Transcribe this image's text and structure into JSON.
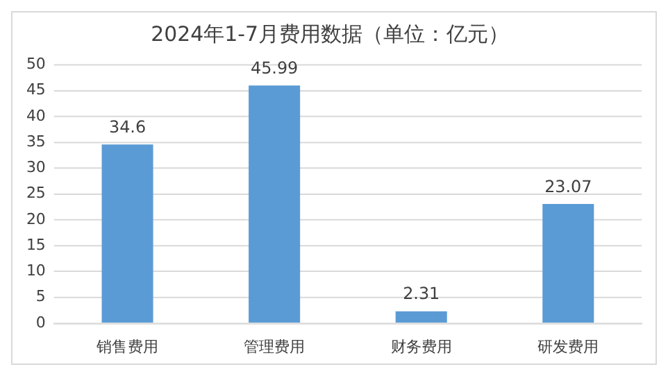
{
  "chart_data": {
    "type": "bar",
    "title": "2024年1-7月费用数据（单位：亿元）",
    "categories": [
      "销售费用",
      "管理费用",
      "财务费用",
      "研发费用"
    ],
    "values": [
      34.6,
      45.99,
      2.31,
      23.07
    ],
    "color": "#5b9bd5",
    "ylim": [
      0,
      50
    ],
    "yticks": [
      0,
      5,
      10,
      15,
      20,
      25,
      30,
      35,
      40,
      45,
      50
    ],
    "grid": "y",
    "legend": false,
    "data_labels": true
  }
}
